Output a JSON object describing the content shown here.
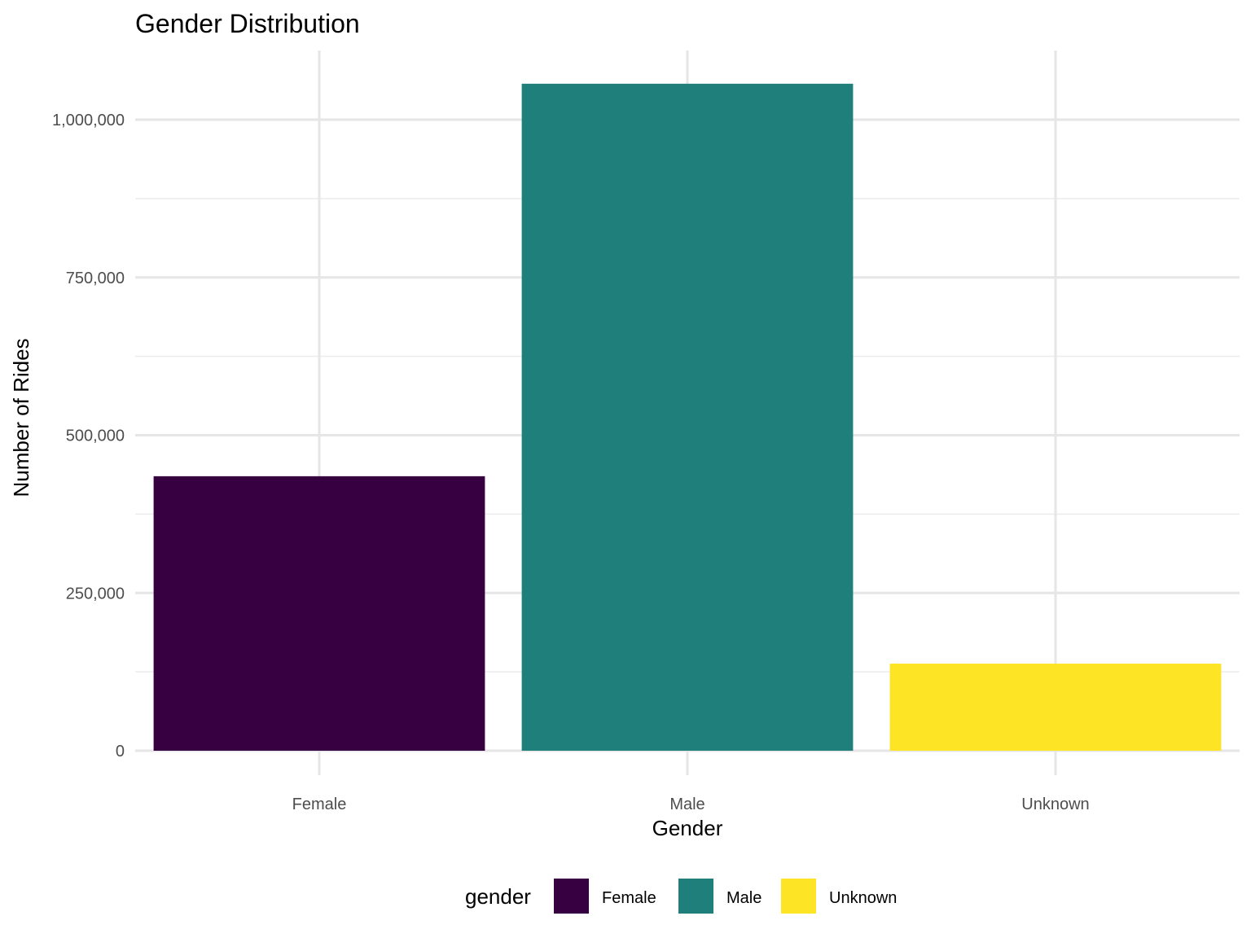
{
  "chart_data": {
    "type": "bar",
    "title": "Gender Distribution",
    "xlabel": "Gender",
    "ylabel": "Number of Rides",
    "categories": [
      "Female",
      "Male",
      "Unknown"
    ],
    "values": [
      435000,
      1057000,
      138000
    ],
    "colors": [
      "#370040",
      "#1f7f7a",
      "#fde425"
    ],
    "ylim": [
      0,
      1100000
    ],
    "yticks": [
      0,
      250000,
      500000,
      750000,
      1000000
    ],
    "ytick_labels": [
      "0",
      "250,000",
      "500,000",
      "750,000",
      "1,000,000"
    ],
    "grid": true,
    "legend": {
      "title": "gender",
      "position": "bottom",
      "entries": [
        "Female",
        "Male",
        "Unknown"
      ]
    }
  }
}
